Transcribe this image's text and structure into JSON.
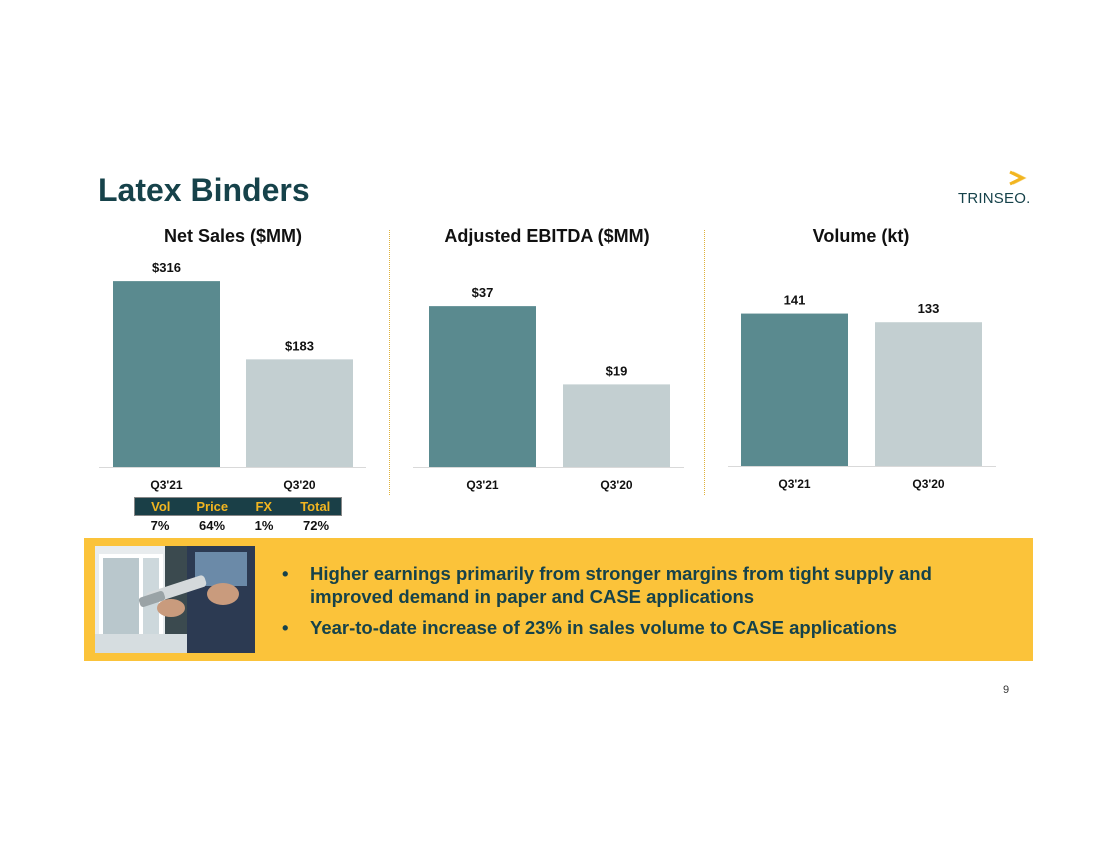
{
  "slide": {
    "title": "Latex Binders",
    "logo_text": "TRINSEO.",
    "page_number": "9"
  },
  "colors": {
    "title": "#16424a",
    "bar_current": "#5a8a8f",
    "bar_prior": "#c3cfd1",
    "banner": "#fbc33a",
    "bridge_header_bg": "#1a3f47",
    "bridge_header_text": "#f2b520",
    "logo_accent": "#f2b520"
  },
  "chart_data": [
    {
      "type": "bar",
      "title": "Net Sales ($MM)",
      "categories": [
        "Q3'21",
        "Q3'20"
      ],
      "values": [
        316,
        183
      ],
      "data_labels": [
        "$316",
        "$183"
      ],
      "ylim": [
        0,
        340
      ],
      "grid": false
    },
    {
      "type": "bar",
      "title": "Adjusted EBITDA ($MM)",
      "categories": [
        "Q3'21",
        "Q3'20"
      ],
      "values": [
        37,
        19
      ],
      "data_labels": [
        "$37",
        "$19"
      ],
      "ylim": [
        0,
        46
      ],
      "grid": false
    },
    {
      "type": "bar",
      "title": "Volume (kt)",
      "categories": [
        "Q3'21",
        "Q3'20"
      ],
      "values": [
        141,
        133
      ],
      "data_labels": [
        "141",
        "133"
      ],
      "ylim": [
        0,
        185
      ],
      "grid": false
    }
  ],
  "bridge": {
    "headers": [
      "Vol",
      "Price",
      "FX",
      "Total"
    ],
    "values": [
      "7%",
      "64%",
      "1%",
      "72%"
    ]
  },
  "banner": {
    "photo_icon": "caulk-gun-window-photo",
    "bullet_glyph": "•",
    "bullets": [
      "Higher earnings primarily from stronger margins from tight supply and improved demand in paper and CASE applications",
      "Year-to-date increase of 23% in sales volume to CASE applications"
    ]
  }
}
